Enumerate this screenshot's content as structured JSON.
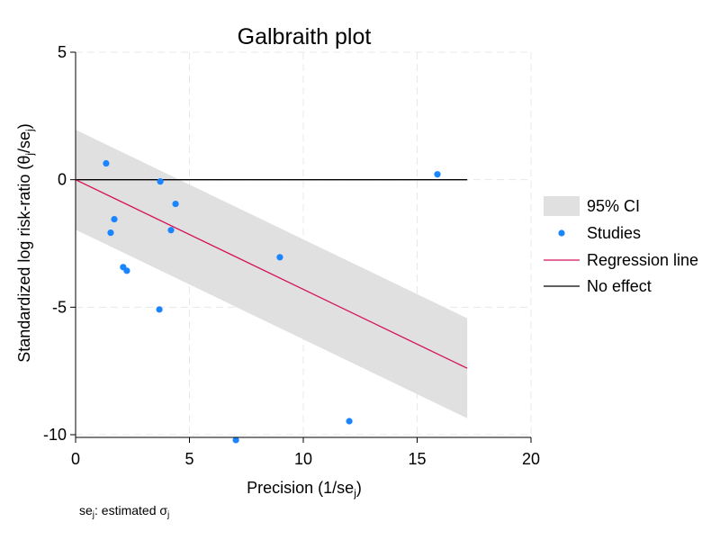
{
  "chart_data": {
    "type": "scatter",
    "title": "Galbraith plot",
    "xlabel": {
      "main": "Precision (1/se",
      "sub": "j",
      "end": ")"
    },
    "ylabel": {
      "a": "Standardized log risk-ratio (θ",
      "sub1": "j",
      "b": "/se",
      "sub2": "j",
      "end": ")"
    },
    "note": {
      "a": "se",
      "sub1": "j",
      "b": ": estimated σ",
      "sub2": "j"
    },
    "xlim": [
      0,
      20
    ],
    "ylim": [
      -10,
      5
    ],
    "xticks": [
      0,
      5,
      10,
      15,
      20
    ],
    "yticks": [
      5,
      0,
      -5,
      -10
    ],
    "grid": true,
    "legend_position": "right",
    "legend": [
      "95% CI",
      "Studies",
      "Regression line",
      "No effect"
    ],
    "studies": {
      "x": [
        1.34,
        3.72,
        4.39,
        1.7,
        1.54,
        4.19,
        2.09,
        2.25,
        3.68,
        8.97,
        15.89,
        12.02,
        7.04
      ],
      "y": [
        0.64,
        -0.07,
        -0.95,
        -1.55,
        -2.08,
        -1.98,
        -3.43,
        -3.57,
        -5.09,
        -3.04,
        0.21,
        -9.47,
        -10.21
      ]
    },
    "regression": {
      "intercept": 0,
      "slope": -0.43,
      "ci_halfwidth": 1.96,
      "x_max": 17.2
    },
    "no_effect": 0,
    "colors": {
      "ci": "#e0e0e0",
      "studies": "#1a85ff",
      "regression": "#d41159",
      "no_effect": "#000000",
      "grid": "#e8e8e8"
    }
  }
}
